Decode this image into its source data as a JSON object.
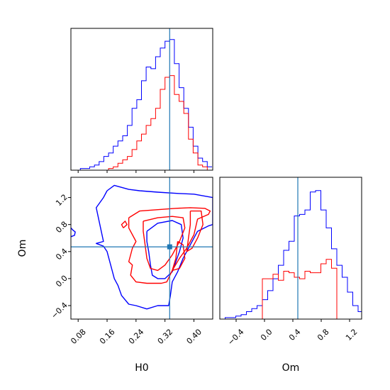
{
  "chart_data": {
    "type": "corner",
    "colors": {
      "blue": "#0000ff",
      "red": "#ff0000",
      "truth": "#1f77b4",
      "axis": "#000000"
    },
    "parameters": [
      "H0",
      "Om"
    ],
    "truth": {
      "H0": 0.333,
      "Om": 0.47
    },
    "H0_hist": {
      "xlim": [
        0.06,
        0.452
      ],
      "bin_edges": [
        0.06,
        0.073,
        0.086,
        0.099,
        0.112,
        0.125,
        0.138,
        0.151,
        0.164,
        0.177,
        0.19,
        0.203,
        0.216,
        0.229,
        0.242,
        0.255,
        0.268,
        0.281,
        0.294,
        0.307,
        0.32,
        0.333,
        0.346,
        0.359,
        0.372,
        0.385,
        0.398,
        0.411,
        0.424,
        0.437,
        0.45
      ],
      "series": [
        {
          "name": "",
          "color": "blue",
          "counts": [
            0,
            0,
            1,
            1,
            2,
            3,
            5,
            8,
            10,
            14,
            17,
            20,
            26,
            36,
            41,
            52,
            60,
            59,
            66,
            71,
            75,
            76,
            62,
            48,
            36,
            25,
            14,
            7,
            5,
            2
          ]
        },
        {
          "name": "",
          "color": "red",
          "counts": [
            0,
            0,
            0,
            0,
            0,
            0,
            0,
            0,
            1,
            2,
            4,
            6,
            8,
            12,
            17,
            21,
            26,
            30,
            36,
            47,
            54,
            55,
            44,
            40,
            33,
            18,
            10,
            3,
            2,
            0
          ]
        }
      ]
    },
    "Om_hist": {
      "xlim": [
        -0.63,
        1.37
      ],
      "bin_edges": [
        -0.63,
        -0.555,
        -0.48,
        -0.405,
        -0.33,
        -0.255,
        -0.18,
        -0.105,
        -0.03,
        0.045,
        0.12,
        0.195,
        0.27,
        0.345,
        0.42,
        0.495,
        0.57,
        0.645,
        0.72,
        0.795,
        0.87,
        0.945,
        1.02,
        1.095,
        1.17,
        1.245,
        1.32,
        1.395
      ],
      "series": [
        {
          "name": "",
          "color": "blue",
          "counts": [
            0,
            1,
            1,
            2,
            3,
            5,
            7,
            9,
            13,
            19,
            27,
            36,
            46,
            52,
            69,
            70,
            73,
            85,
            86,
            73,
            61,
            47,
            36,
            28,
            18,
            9,
            5
          ]
        },
        {
          "name": "",
          "color": "red",
          "counts": [
            0,
            0,
            0,
            0,
            0,
            0,
            0,
            0,
            27,
            27,
            30,
            26,
            32,
            31,
            28,
            27,
            32,
            31,
            31,
            37,
            40,
            34,
            0,
            0,
            0,
            0,
            0
          ]
        }
      ]
    },
    "scatter_2d": {
      "xlabel": "H0",
      "ylabel": "Om",
      "xlim": [
        0.06,
        0.452
      ],
      "ylim": [
        -0.6,
        1.5
      ],
      "contours": [
        {
          "color": "blue",
          "points": [
            [
              0.16,
              1.3
            ],
            [
              0.18,
              1.38
            ],
            [
              0.22,
              1.32
            ],
            [
              0.25,
              1.3
            ],
            [
              0.3,
              1.28
            ],
            [
              0.36,
              1.26
            ],
            [
              0.4,
              1.25
            ],
            [
              0.452,
              1.2
            ],
            [
              0.452,
              0.8
            ],
            [
              0.44,
              0.78
            ],
            [
              0.41,
              0.7
            ],
            [
              0.39,
              0.5
            ],
            [
              0.37,
              0.3
            ],
            [
              0.355,
              0.1
            ],
            [
              0.34,
              -0.05
            ],
            [
              0.335,
              -0.25
            ],
            [
              0.33,
              -0.4
            ],
            [
              0.3,
              -0.4
            ],
            [
              0.27,
              -0.45
            ],
            [
              0.24,
              -0.4
            ],
            [
              0.22,
              -0.38
            ],
            [
              0.2,
              -0.25
            ],
            [
              0.19,
              -0.1
            ],
            [
              0.18,
              0.0
            ],
            [
              0.17,
              0.2
            ],
            [
              0.16,
              0.4
            ],
            [
              0.15,
              0.48
            ],
            [
              0.13,
              0.52
            ],
            [
              0.15,
              0.55
            ],
            [
              0.14,
              0.8
            ],
            [
              0.13,
              1.05
            ],
            [
              0.15,
              1.2
            ],
            [
              0.16,
              1.3
            ]
          ]
        },
        {
          "color": "blue",
          "points": [
            [
              0.27,
              0.7
            ],
            [
              0.3,
              0.82
            ],
            [
              0.34,
              0.86
            ],
            [
              0.365,
              0.8
            ],
            [
              0.37,
              0.6
            ],
            [
              0.36,
              0.4
            ],
            [
              0.35,
              0.25
            ],
            [
              0.34,
              0.1
            ],
            [
              0.32,
              0.0
            ],
            [
              0.3,
              0.0
            ],
            [
              0.285,
              0.05
            ],
            [
              0.28,
              0.2
            ],
            [
              0.275,
              0.4
            ],
            [
              0.27,
              0.55
            ],
            [
              0.27,
              0.7
            ]
          ]
        },
        {
          "color": "blue",
          "points": [
            [
              0.06,
              0.75
            ],
            [
              0.065,
              0.72
            ],
            [
              0.072,
              0.69
            ],
            [
              0.07,
              0.64
            ],
            [
              0.06,
              0.62
            ]
          ]
        },
        {
          "color": "red",
          "points": [
            [
              0.22,
              0.9
            ],
            [
              0.25,
              1.0
            ],
            [
              0.3,
              1.02
            ],
            [
              0.35,
              1.04
            ],
            [
              0.39,
              1.05
            ],
            [
              0.43,
              1.04
            ],
            [
              0.445,
              1.0
            ],
            [
              0.44,
              0.95
            ],
            [
              0.41,
              0.88
            ],
            [
              0.4,
              0.65
            ],
            [
              0.38,
              0.45
            ],
            [
              0.36,
              0.3
            ],
            [
              0.34,
              0.12
            ],
            [
              0.325,
              -0.05
            ],
            [
              0.31,
              -0.07
            ],
            [
              0.27,
              -0.07
            ],
            [
              0.24,
              -0.05
            ],
            [
              0.225,
              0.05
            ],
            [
              0.23,
              0.2
            ],
            [
              0.22,
              0.25
            ],
            [
              0.225,
              0.35
            ],
            [
              0.23,
              0.45
            ],
            [
              0.24,
              0.55
            ],
            [
              0.22,
              0.75
            ],
            [
              0.22,
              0.9
            ]
          ]
        },
        {
          "color": "red",
          "points": [
            [
              0.26,
              0.85
            ],
            [
              0.3,
              0.9
            ],
            [
              0.34,
              0.92
            ],
            [
              0.37,
              0.9
            ],
            [
              0.375,
              0.75
            ],
            [
              0.36,
              0.55
            ],
            [
              0.34,
              0.35
            ],
            [
              0.32,
              0.2
            ],
            [
              0.3,
              0.12
            ],
            [
              0.28,
              0.15
            ],
            [
              0.27,
              0.3
            ],
            [
              0.265,
              0.5
            ],
            [
              0.26,
              0.7
            ],
            [
              0.26,
              0.85
            ]
          ]
        },
        {
          "color": "red",
          "points": [
            [
              0.39,
              1.0
            ],
            [
              0.42,
              1.0
            ],
            [
              0.425,
              0.8
            ],
            [
              0.41,
              0.6
            ],
            [
              0.395,
              0.45
            ],
            [
              0.38,
              0.4
            ],
            [
              0.385,
              0.6
            ],
            [
              0.39,
              0.8
            ],
            [
              0.39,
              1.0
            ]
          ]
        },
        {
          "color": "red",
          "points": [
            [
              0.355,
              0.55
            ],
            [
              0.37,
              0.5
            ],
            [
              0.375,
              0.3
            ],
            [
              0.36,
              0.15
            ],
            [
              0.34,
              0.12
            ],
            [
              0.35,
              0.3
            ],
            [
              0.355,
              0.55
            ]
          ]
        },
        {
          "color": "red",
          "points": [
            [
              0.205,
              0.75
            ],
            [
              0.215,
              0.8
            ],
            [
              0.21,
              0.85
            ],
            [
              0.2,
              0.8
            ],
            [
              0.205,
              0.75
            ]
          ]
        }
      ]
    },
    "ticks": {
      "H0": {
        "values": [
          0.08,
          0.16,
          0.24,
          0.32,
          0.4
        ],
        "labels": [
          "0.08",
          "0.16",
          "0.24",
          "0.32",
          "0.40"
        ]
      },
      "Om_y": {
        "values": [
          -0.4,
          0.0,
          0.4,
          0.8,
          1.2
        ],
        "labels": [
          "−0.4",
          "0.0",
          "0.4",
          "0.8",
          "1.2"
        ]
      },
      "Om_x": {
        "values": [
          -0.4,
          0.0,
          0.4,
          0.8,
          1.2
        ],
        "labels": [
          "−0.4",
          "0.0",
          "0.4",
          "0.8",
          "1.2"
        ]
      }
    }
  }
}
